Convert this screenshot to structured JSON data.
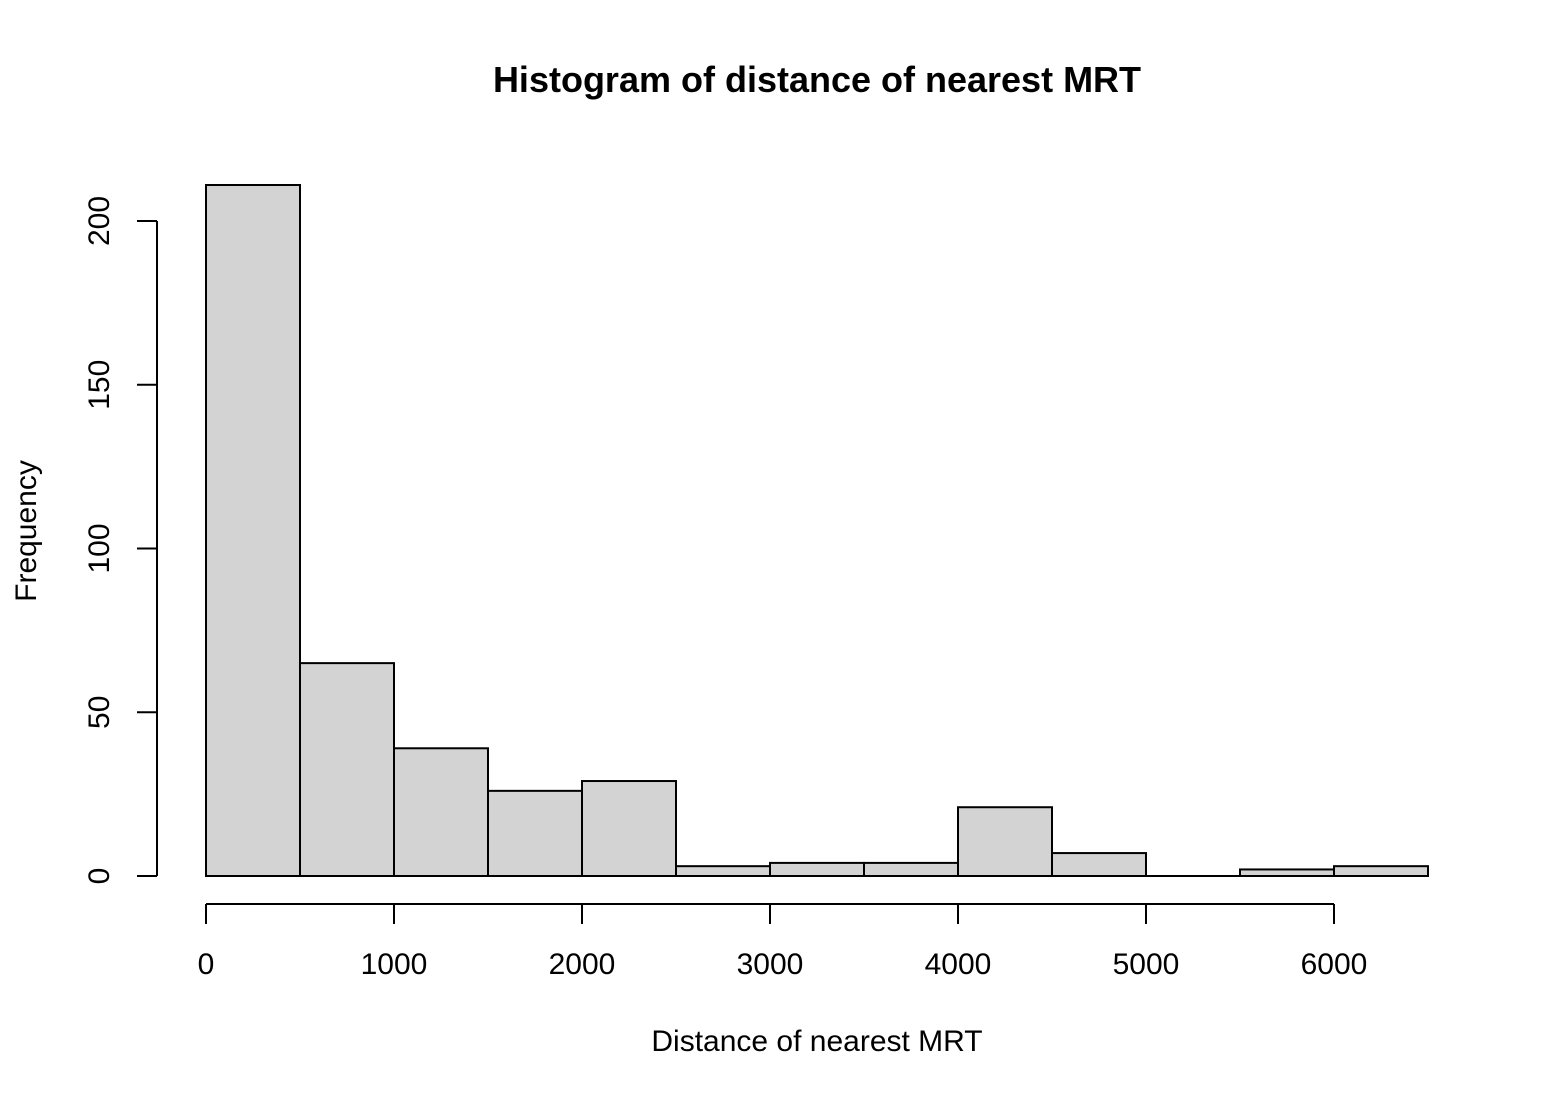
{
  "chart_data": {
    "type": "bar",
    "subtype": "histogram",
    "title": "Histogram of distance of nearest MRT",
    "xlabel": "Distance of nearest MRT",
    "ylabel": "Frequency",
    "bins": [
      {
        "x0": 0,
        "x1": 500,
        "count": 211
      },
      {
        "x0": 500,
        "x1": 1000,
        "count": 65
      },
      {
        "x0": 1000,
        "x1": 1500,
        "count": 39
      },
      {
        "x0": 1500,
        "x1": 2000,
        "count": 26
      },
      {
        "x0": 2000,
        "x1": 2500,
        "count": 29
      },
      {
        "x0": 2500,
        "x1": 3000,
        "count": 3
      },
      {
        "x0": 3000,
        "x1": 3500,
        "count": 4
      },
      {
        "x0": 3500,
        "x1": 4000,
        "count": 4
      },
      {
        "x0": 4000,
        "x1": 4500,
        "count": 21
      },
      {
        "x0": 4500,
        "x1": 5000,
        "count": 7
      },
      {
        "x0": 5000,
        "x1": 5500,
        "count": 0
      },
      {
        "x0": 5500,
        "x1": 6000,
        "count": 2
      },
      {
        "x0": 6000,
        "x1": 6500,
        "count": 3
      }
    ],
    "x_ticks": [
      0,
      1000,
      2000,
      3000,
      4000,
      5000,
      6000
    ],
    "x_tick_labels": [
      "0",
      "1000",
      "2000",
      "3000",
      "4000",
      "5000",
      "6000"
    ],
    "y_ticks": [
      0,
      50,
      100,
      150,
      200
    ],
    "y_tick_labels": [
      "0",
      "50",
      "100",
      "150",
      "200"
    ],
    "xlim": [
      0,
      6500
    ],
    "ylim": [
      0,
      211
    ],
    "grid": false,
    "bar_fill": "#d3d3d3",
    "bar_stroke": "#000000"
  }
}
